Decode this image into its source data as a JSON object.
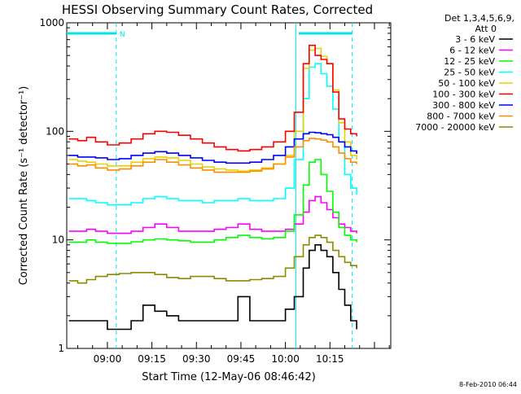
{
  "chart_data": {
    "type": "line",
    "title": "HESSI Observing Summary Count Rates, Corrected",
    "xlabel": "Start Time (12-May-06 08:46:42)",
    "ylabel": "Corrected Count Rate (s⁻¹ detector⁻¹)",
    "yscale": "log",
    "ylim": [
      1,
      1000
    ],
    "xlim_minutes": [
      -13.7,
      95.5
    ],
    "x_tick_labels": [
      "09:00",
      "09:15",
      "09:30",
      "09:45",
      "10:00",
      "10:15"
    ],
    "x_tick_minutes": [
      0,
      15,
      30,
      45,
      60,
      75
    ],
    "y_tick_labels": [
      "1",
      "10",
      "100",
      "1000"
    ],
    "y_tick_values": [
      1,
      10,
      100,
      1000
    ],
    "legend_header": [
      "Det 1,3,4,5,6,9,",
      "Att 0"
    ],
    "legend_position": "top-right-outside",
    "footer_stamp": "8-Feb-2010 06:44",
    "attenuator_bars": [
      {
        "label": "N",
        "x_start": -13.7,
        "x_end": 3.0,
        "color": "#00e6e6"
      },
      {
        "label": "",
        "x_start": 64.5,
        "x_end": 82.5,
        "color": "#00e6e6"
      }
    ],
    "vertical_lines": [
      {
        "x": 3.0,
        "style": "dashed",
        "color": "#00e6e6"
      },
      {
        "x": 63.5,
        "style": "solid",
        "color": "#00e6e6"
      },
      {
        "x": 82.5,
        "style": "dashed",
        "color": "#00e6e6"
      }
    ],
    "x": [
      -13,
      -10,
      -7,
      -4,
      0,
      4,
      8,
      12,
      16,
      20,
      24,
      28,
      32,
      36,
      40,
      44,
      48,
      52,
      56,
      60,
      63,
      66,
      68,
      70,
      72,
      74,
      76,
      78,
      80,
      82,
      84
    ],
    "series": [
      {
        "name": "3 - 6 keV",
        "color": "#000000",
        "values": [
          1.8,
          1.8,
          1.8,
          1.8,
          1.5,
          1.5,
          1.8,
          2.5,
          2.2,
          2.0,
          1.8,
          1.8,
          1.8,
          1.8,
          1.8,
          3.0,
          1.8,
          1.8,
          1.8,
          2.3,
          3.0,
          5.5,
          8.0,
          9.0,
          8.0,
          7.0,
          5.0,
          3.5,
          2.5,
          1.8,
          1.5
        ]
      },
      {
        "name": "6 - 12 keV",
        "color": "#ff00ff",
        "values": [
          12,
          12,
          12.5,
          12,
          11.5,
          11.5,
          12,
          13,
          14,
          13,
          12,
          12,
          12,
          12.5,
          13,
          14,
          12.5,
          12,
          12,
          12.5,
          14,
          18,
          23,
          25,
          22,
          19,
          16,
          14,
          13,
          12,
          11.5
        ]
      },
      {
        "name": "12 - 25 keV",
        "color": "#00ff00",
        "values": [
          9.5,
          9.5,
          10,
          9.5,
          9.3,
          9.3,
          9.6,
          10,
          10.2,
          10,
          9.8,
          9.5,
          9.5,
          10,
          10.5,
          11,
          10.5,
          10.2,
          10.5,
          12,
          17,
          32,
          52,
          55,
          40,
          28,
          18,
          13,
          11,
          10,
          9.5
        ]
      },
      {
        "name": "25 - 50 keV",
        "color": "#00ffff",
        "values": [
          24,
          24,
          23,
          22,
          21,
          21,
          22,
          24,
          25,
          24,
          23,
          23,
          22,
          23,
          23,
          24,
          23,
          23,
          24,
          30,
          55,
          200,
          390,
          420,
          340,
          260,
          160,
          80,
          40,
          30,
          26
        ]
      },
      {
        "name": "50 - 100 keV",
        "color": "#e6d200",
        "values": [
          55,
          53,
          52,
          50,
          48,
          48,
          52,
          56,
          58,
          57,
          54,
          50,
          47,
          45,
          44,
          43,
          44,
          46,
          50,
          60,
          100,
          380,
          560,
          580,
          490,
          420,
          240,
          120,
          80,
          60,
          55
        ]
      },
      {
        "name": "100 - 300 keV",
        "color": "#ff0000",
        "values": [
          85,
          82,
          88,
          80,
          75,
          78,
          85,
          95,
          100,
          98,
          92,
          85,
          78,
          72,
          68,
          66,
          68,
          72,
          80,
          100,
          150,
          420,
          620,
          500,
          460,
          420,
          230,
          130,
          105,
          95,
          90
        ]
      },
      {
        "name": "300 - 800 keV",
        "color": "#0000ff",
        "values": [
          60,
          58,
          58,
          57,
          55,
          56,
          60,
          63,
          65,
          63,
          60,
          57,
          54,
          52,
          51,
          51,
          52,
          55,
          60,
          72,
          85,
          95,
          98,
          97,
          95,
          93,
          88,
          80,
          72,
          66,
          62
        ]
      },
      {
        "name": "800 - 7000 keV",
        "color": "#ff8c00",
        "values": [
          50,
          48,
          49,
          46,
          44,
          45,
          48,
          52,
          55,
          52,
          49,
          46,
          44,
          42,
          42,
          42,
          43,
          45,
          50,
          58,
          72,
          82,
          86,
          85,
          83,
          80,
          72,
          63,
          56,
          52,
          50
        ]
      },
      {
        "name": "7000 - 20000 keV",
        "color": "#8b8b00",
        "values": [
          4.2,
          4.0,
          4.3,
          4.6,
          4.8,
          4.9,
          5.0,
          5.0,
          4.8,
          4.5,
          4.4,
          4.6,
          4.6,
          4.4,
          4.2,
          4.2,
          4.3,
          4.4,
          4.6,
          5.5,
          7.0,
          9.0,
          10.5,
          11.0,
          10.5,
          9.5,
          8.0,
          7.0,
          6.2,
          5.8,
          5.5
        ]
      }
    ]
  }
}
